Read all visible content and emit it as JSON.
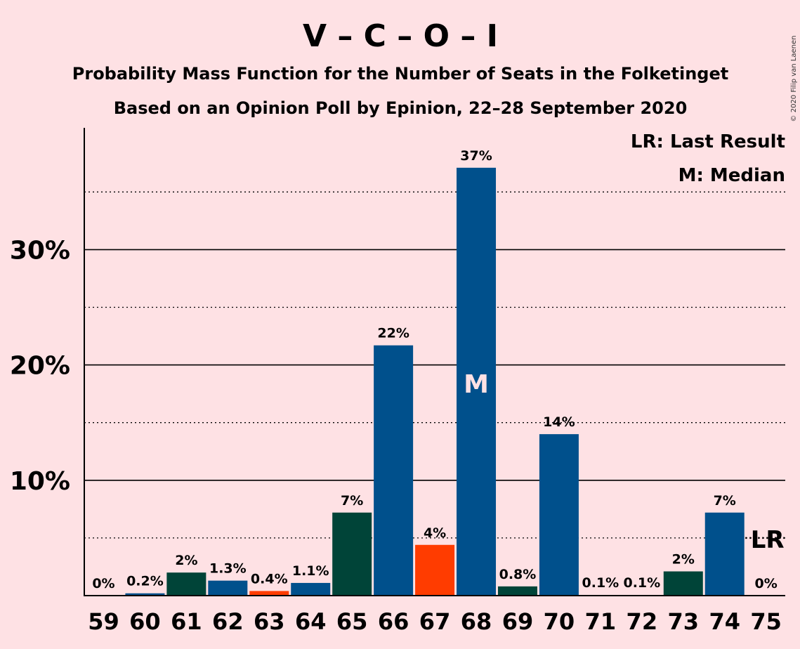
{
  "chart_data": {
    "type": "bar",
    "title": "V – C – O – I",
    "subtitle_1": "Probability Mass Function for the Number of Seats in the Folketinget",
    "subtitle_2": "Based on an Opinion Poll by Epinion, 22–28 September 2020",
    "copyright": "© 2020 Filip van Laenen",
    "legend": {
      "lr": "LR: Last Result",
      "m": "M: Median",
      "placement": "top-right"
    },
    "categories": [
      59,
      60,
      61,
      62,
      63,
      64,
      65,
      66,
      67,
      68,
      69,
      70,
      71,
      72,
      73,
      74,
      75
    ],
    "values": [
      0,
      0.2,
      2.0,
      1.3,
      0.4,
      1.1,
      7.2,
      21.7,
      4.4,
      37.1,
      0.8,
      14.0,
      0.05,
      0.05,
      2.1,
      7.2,
      0
    ],
    "value_labels": [
      "0%",
      "0.2%",
      "2%",
      "1.3%",
      "0.4%",
      "1.1%",
      "7%",
      "22%",
      "4%",
      "37%",
      "0.8%",
      "14%",
      "0.1%",
      "0.1%",
      "2%",
      "7%",
      "0%"
    ],
    "bar_color_keys": [
      "blue",
      "blue",
      "green",
      "blue",
      "orange",
      "blue",
      "green",
      "blue",
      "orange",
      "blue",
      "green",
      "blue",
      "green",
      "blue",
      "green",
      "blue",
      "blue"
    ],
    "colors": {
      "blue": "#00508c",
      "green": "#004438",
      "orange": "#ff3c00",
      "background": "#fee1e4"
    },
    "median": {
      "seat": 68,
      "label": "M"
    },
    "last_result": {
      "seat": 75,
      "label": "LR"
    },
    "y_ticks": [
      {
        "value": 10,
        "label": "10%"
      },
      {
        "value": 20,
        "label": "20%"
      },
      {
        "value": 30,
        "label": "30%"
      }
    ],
    "y_minor_ticks": [
      5,
      15,
      25,
      35
    ],
    "ylim": [
      0,
      40.5
    ],
    "grid": true
  }
}
